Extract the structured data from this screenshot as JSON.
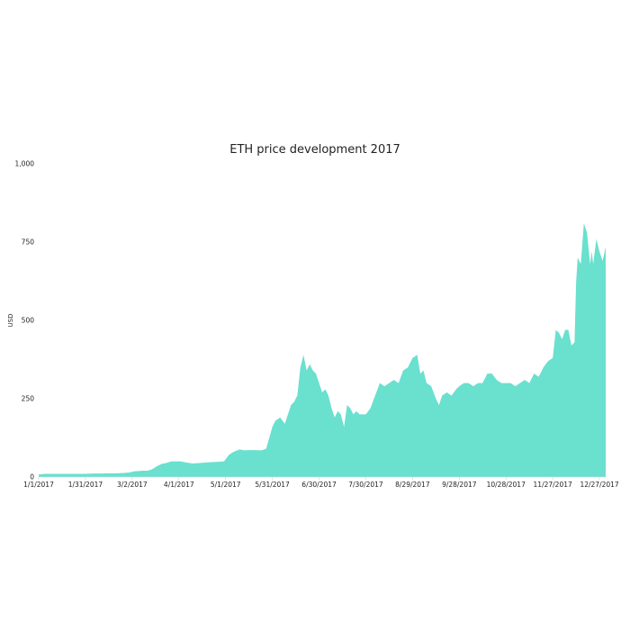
{
  "chart_data": {
    "type": "area",
    "title": "ETH price development 2017",
    "xlabel": "",
    "ylabel": "USD",
    "ylim": [
      0,
      1000
    ],
    "xlim": [
      "2017-01-01",
      "2017-12-31"
    ],
    "y_ticks": [
      0,
      250,
      500,
      750,
      1000
    ],
    "y_tick_labels": [
      "0",
      "250",
      "500",
      "750",
      "1,000"
    ],
    "x_tick_labels": [
      "1/1/2017",
      "1/31/2017",
      "3/2/2017",
      "4/1/2017",
      "5/1/2017",
      "5/31/2017",
      "6/30/2017",
      "7/30/2017",
      "8/29/2017",
      "9/28/2017",
      "10/28/2017",
      "11/27/2017",
      "12/27/2017"
    ],
    "x_tick_dates": [
      "2017-01-01",
      "2017-01-31",
      "2017-03-02",
      "2017-04-01",
      "2017-05-01",
      "2017-05-31",
      "2017-06-30",
      "2017-07-30",
      "2017-08-29",
      "2017-09-28",
      "2017-10-28",
      "2017-11-27",
      "2017-12-27"
    ],
    "grid": false,
    "legend": "none",
    "color": "#6ae0cf",
    "series": [
      {
        "x": [
          "2017-01-01",
          "2017-01-05",
          "2017-01-10",
          "2017-01-15",
          "2017-01-20",
          "2017-01-25",
          "2017-01-31",
          "2017-02-05",
          "2017-02-10",
          "2017-02-15",
          "2017-02-20",
          "2017-02-25",
          "2017-03-01",
          "2017-03-03",
          "2017-03-06",
          "2017-03-09",
          "2017-03-12",
          "2017-03-15",
          "2017-03-18",
          "2017-03-21",
          "2017-03-24",
          "2017-03-27",
          "2017-03-30",
          "2017-04-02",
          "2017-04-06",
          "2017-04-10",
          "2017-04-15",
          "2017-04-20",
          "2017-04-25",
          "2017-04-30",
          "2017-05-03",
          "2017-05-06",
          "2017-05-10",
          "2017-05-13",
          "2017-05-16",
          "2017-05-20",
          "2017-05-24",
          "2017-05-27",
          "2017-05-31",
          "2017-06-02",
          "2017-06-05",
          "2017-06-08",
          "2017-06-10",
          "2017-06-12",
          "2017-06-14",
          "2017-06-16",
          "2017-06-18",
          "2017-06-20",
          "2017-06-22",
          "2017-06-24",
          "2017-06-26",
          "2017-06-28",
          "2017-06-30",
          "2017-07-02",
          "2017-07-04",
          "2017-07-06",
          "2017-07-08",
          "2017-07-10",
          "2017-07-12",
          "2017-07-14",
          "2017-07-16",
          "2017-07-18",
          "2017-07-20",
          "2017-07-22",
          "2017-07-24",
          "2017-07-26",
          "2017-07-28",
          "2017-07-30",
          "2017-08-02",
          "2017-08-05",
          "2017-08-08",
          "2017-08-11",
          "2017-08-14",
          "2017-08-17",
          "2017-08-20",
          "2017-08-23",
          "2017-08-26",
          "2017-08-29",
          "2017-09-01",
          "2017-09-03",
          "2017-09-05",
          "2017-09-07",
          "2017-09-10",
          "2017-09-13",
          "2017-09-15",
          "2017-09-17",
          "2017-09-20",
          "2017-09-23",
          "2017-09-26",
          "2017-09-28",
          "2017-10-01",
          "2017-10-04",
          "2017-10-07",
          "2017-10-10",
          "2017-10-13",
          "2017-10-16",
          "2017-10-19",
          "2017-10-22",
          "2017-10-25",
          "2017-10-28",
          "2017-10-31",
          "2017-11-03",
          "2017-11-06",
          "2017-11-09",
          "2017-11-12",
          "2017-11-15",
          "2017-11-18",
          "2017-11-21",
          "2017-11-24",
          "2017-11-27",
          "2017-11-29",
          "2017-12-01",
          "2017-12-03",
          "2017-12-05",
          "2017-12-07",
          "2017-12-09",
          "2017-12-11",
          "2017-12-12",
          "2017-12-13",
          "2017-12-15",
          "2017-12-17",
          "2017-12-19",
          "2017-12-21",
          "2017-12-22",
          "2017-12-23",
          "2017-12-25",
          "2017-12-27",
          "2017-12-29",
          "2017-12-31"
        ],
        "y": [
          8,
          10,
          10,
          10,
          10,
          10,
          10,
          11,
          11,
          12,
          12,
          13,
          15,
          18,
          19,
          20,
          20,
          25,
          35,
          42,
          45,
          50,
          50,
          50,
          46,
          43,
          45,
          47,
          48,
          50,
          70,
          80,
          88,
          85,
          86,
          86,
          85,
          90,
          160,
          180,
          190,
          170,
          200,
          230,
          240,
          260,
          350,
          390,
          340,
          360,
          340,
          330,
          300,
          270,
          280,
          260,
          220,
          190,
          210,
          200,
          160,
          230,
          220,
          200,
          210,
          200,
          200,
          200,
          220,
          260,
          300,
          290,
          300,
          310,
          300,
          340,
          350,
          380,
          390,
          330,
          340,
          300,
          290,
          250,
          230,
          260,
          270,
          260,
          280,
          290,
          300,
          300,
          290,
          300,
          300,
          330,
          330,
          310,
          300,
          300,
          300,
          290,
          300,
          310,
          300,
          330,
          320,
          350,
          370,
          380,
          470,
          460,
          440,
          470,
          470,
          420,
          430,
          620,
          700,
          680,
          810,
          780,
          680,
          720,
          680,
          760,
          720,
          690,
          735
        ]
      }
    ]
  }
}
